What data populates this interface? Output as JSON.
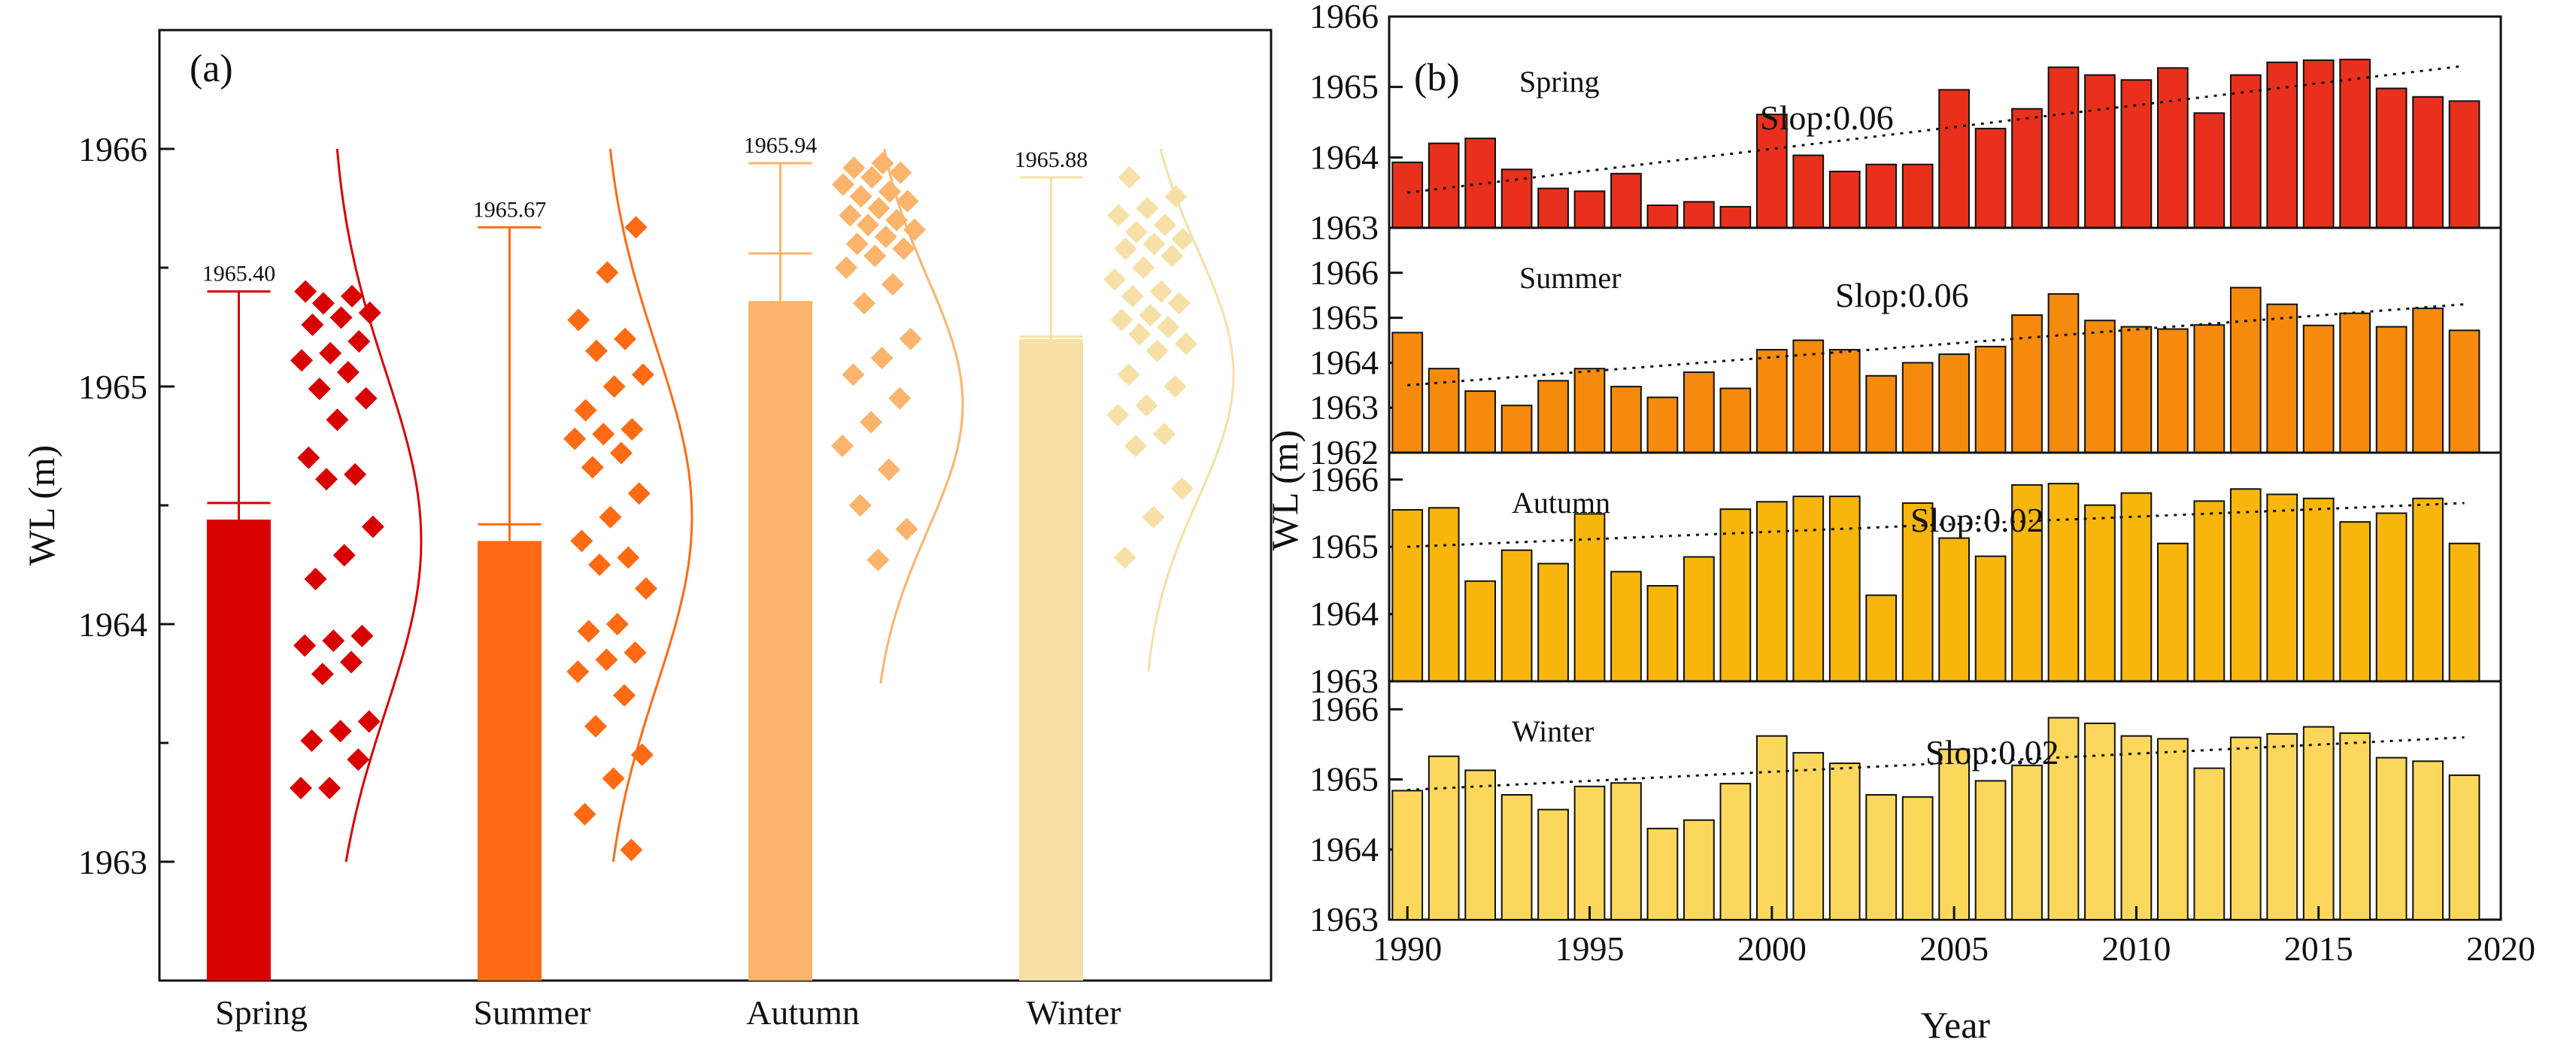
{
  "chart_data": [
    {
      "type": "bar",
      "panel_label": "(a)",
      "ylabel": "WL (m)",
      "ylim": [
        1962.5,
        1966.5
      ],
      "yticks": [
        1963,
        1964,
        1965,
        1966
      ],
      "categories": [
        "Spring",
        "Summer",
        "Autumn",
        "Winter"
      ],
      "colors": [
        "#d90000",
        "#ff6a13",
        "#fcb36b",
        "#f6e0a6"
      ],
      "mean": [
        1964.44,
        1964.35,
        1965.36,
        1965.2
      ],
      "error_cap": [
        1964.51,
        1964.42,
        1965.56,
        1965.21
      ],
      "max": [
        1965.4,
        1965.67,
        1965.94,
        1965.88
      ],
      "max_labels": [
        "1965.40",
        "1965.67",
        "1965.94",
        "1965.88"
      ],
      "distribution_range": [
        [
          1963.0,
          1966.0
        ],
        [
          1963.0,
          1966.0
        ],
        [
          1963.75,
          1966.0
        ],
        [
          1963.8,
          1966.0
        ]
      ],
      "points": [
        [
          1963.31,
          1963.31,
          1963.43,
          1963.51,
          1963.55,
          1963.59,
          1963.79,
          1963.84,
          1963.91,
          1963.93,
          1963.95,
          1964.19,
          1964.29,
          1964.41,
          1964.61,
          1964.63,
          1964.7,
          1964.86,
          1964.95,
          1964.99,
          1965.06,
          1965.11,
          1965.14,
          1965.19,
          1965.26,
          1965.29,
          1965.31,
          1965.35,
          1965.38,
          1965.4
        ],
        [
          1963.05,
          1963.2,
          1963.35,
          1963.45,
          1963.57,
          1963.7,
          1963.8,
          1963.85,
          1963.88,
          1963.97,
          1964.0,
          1964.15,
          1964.25,
          1964.28,
          1964.35,
          1964.45,
          1964.55,
          1964.66,
          1964.72,
          1964.78,
          1964.8,
          1964.82,
          1964.9,
          1965.0,
          1965.05,
          1965.15,
          1965.2,
          1965.28,
          1965.48,
          1965.67
        ],
        [
          1964.27,
          1964.4,
          1964.5,
          1964.65,
          1964.75,
          1964.85,
          1964.95,
          1965.05,
          1965.12,
          1965.2,
          1965.35,
          1965.43,
          1965.5,
          1965.55,
          1965.58,
          1965.6,
          1965.63,
          1965.66,
          1965.68,
          1965.7,
          1965.72,
          1965.75,
          1965.78,
          1965.8,
          1965.82,
          1965.85,
          1965.88,
          1965.9,
          1965.92,
          1965.94
        ],
        [
          1964.28,
          1964.45,
          1964.57,
          1964.75,
          1964.8,
          1964.88,
          1964.92,
          1965.0,
          1965.05,
          1965.15,
          1965.18,
          1965.22,
          1965.25,
          1965.28,
          1965.3,
          1965.35,
          1965.38,
          1965.4,
          1965.45,
          1965.5,
          1965.55,
          1965.58,
          1965.6,
          1965.62,
          1965.65,
          1965.68,
          1965.72,
          1965.75,
          1965.8,
          1965.88
        ]
      ]
    },
    {
      "type": "bar",
      "panel_label": "(b)",
      "xlabel": "Year",
      "ylabel": "WL (m)",
      "xlim": [
        1989.5,
        2020
      ],
      "xticks": [
        1990,
        1995,
        2000,
        2005,
        2010,
        2015,
        2020
      ],
      "x": [
        1990,
        1991,
        1992,
        1993,
        1994,
        1995,
        1996,
        1997,
        1998,
        1999,
        2000,
        2001,
        2002,
        2003,
        2004,
        2005,
        2006,
        2007,
        2008,
        2009,
        2010,
        2011,
        2012,
        2013,
        2014,
        2015,
        2016,
        2017,
        2018,
        2019
      ],
      "series": [
        {
          "name": "Spring",
          "color": "#e8301c",
          "ylim": [
            1963,
            1966
          ],
          "yticks": [
            1963,
            1964,
            1965,
            1966
          ],
          "slope_label": "Slop:0.06",
          "trend": [
            1963.5,
            1965.3
          ],
          "values": [
            1963.93,
            1964.2,
            1964.27,
            1963.83,
            1963.56,
            1963.52,
            1963.77,
            1963.32,
            1963.37,
            1963.3,
            1964.61,
            1964.03,
            1963.8,
            1963.9,
            1963.9,
            1964.96,
            1964.41,
            1964.69,
            1965.28,
            1965.17,
            1965.1,
            1965.27,
            1964.63,
            1965.17,
            1965.35,
            1965.38,
            1965.39,
            1964.98,
            1964.86,
            1964.8
          ]
        },
        {
          "name": "Summer",
          "color": "#f58a0c",
          "ylim": [
            1962,
            1967
          ],
          "yticks": [
            1962,
            1963,
            1964,
            1965,
            1966
          ],
          "slope_label": "Slop:0.06",
          "trend": [
            1963.5,
            1965.3
          ],
          "values": [
            1964.67,
            1963.87,
            1963.37,
            1963.05,
            1963.6,
            1963.87,
            1963.47,
            1963.23,
            1963.79,
            1963.43,
            1964.29,
            1964.5,
            1964.29,
            1963.71,
            1964.0,
            1964.19,
            1964.36,
            1965.06,
            1965.53,
            1964.94,
            1964.8,
            1964.75,
            1964.84,
            1965.67,
            1965.3,
            1964.83,
            1965.1,
            1964.8,
            1965.21,
            1964.72
          ]
        },
        {
          "name": "Autumn",
          "color": "#f8b60c",
          "ylim": [
            1963,
            1966.4
          ],
          "yticks": [
            1963,
            1964,
            1965,
            1966
          ],
          "slope_label": "Slop:0.02",
          "trend": [
            1965.0,
            1965.65
          ],
          "values": [
            1965.55,
            1965.58,
            1964.49,
            1964.95,
            1964.75,
            1965.49,
            1964.63,
            1964.42,
            1964.85,
            1965.56,
            1965.67,
            1965.75,
            1965.75,
            1964.28,
            1965.65,
            1965.13,
            1964.86,
            1965.92,
            1965.94,
            1965.62,
            1965.8,
            1965.05,
            1965.68,
            1965.86,
            1965.78,
            1965.72,
            1965.37,
            1965.5,
            1965.72,
            1965.05
          ]
        },
        {
          "name": "Winter",
          "color": "#fbd85c",
          "ylim": [
            1963,
            1966.4
          ],
          "yticks": [
            1963,
            1964,
            1965,
            1966
          ],
          "slope_label": "Slop:0.02",
          "trend": [
            1964.85,
            1965.6
          ],
          "values": [
            1964.84,
            1965.33,
            1965.13,
            1964.78,
            1964.57,
            1964.9,
            1964.95,
            1964.3,
            1964.42,
            1964.94,
            1965.62,
            1965.38,
            1965.23,
            1964.78,
            1964.75,
            1965.43,
            1964.98,
            1965.2,
            1965.88,
            1965.8,
            1965.62,
            1965.58,
            1965.16,
            1965.6,
            1965.65,
            1965.75,
            1965.66,
            1965.31,
            1965.26,
            1965.06
          ]
        }
      ]
    }
  ]
}
